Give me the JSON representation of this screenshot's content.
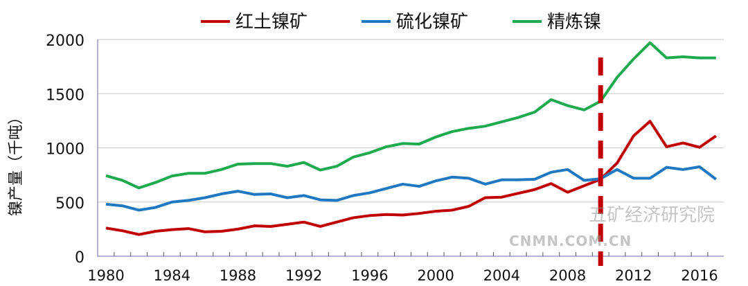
{
  "chart_data": {
    "type": "line",
    "title": "",
    "xlabel": "",
    "ylabel": "镍产量（千吨）",
    "xlim": [
      1980,
      2017
    ],
    "ylim": [
      0,
      2000
    ],
    "yticks": [
      0,
      500,
      1000,
      1500,
      2000
    ],
    "xticks": [
      1980,
      1984,
      1988,
      1992,
      1996,
      2000,
      2004,
      2008,
      2012,
      2016
    ],
    "grid": true,
    "legend": "top",
    "marker_line": {
      "x": 2010,
      "color": "#C00000",
      "style": "dashed"
    },
    "x": [
      1980,
      1981,
      1982,
      1983,
      1984,
      1985,
      1986,
      1987,
      1988,
      1989,
      1990,
      1991,
      1992,
      1993,
      1994,
      1995,
      1996,
      1997,
      1998,
      1999,
      2000,
      2001,
      2002,
      2003,
      2004,
      2005,
      2006,
      2007,
      2008,
      2009,
      2010,
      2011,
      2012,
      2013,
      2014,
      2015,
      2016,
      2017
    ],
    "series": [
      {
        "name": "红土镍矿",
        "color": "#C00000",
        "values": [
          260,
          235,
          200,
          230,
          245,
          255,
          225,
          230,
          250,
          280,
          275,
          295,
          315,
          275,
          315,
          355,
          375,
          385,
          380,
          395,
          415,
          425,
          460,
          540,
          545,
          580,
          615,
          670,
          590,
          650,
          710,
          860,
          1110,
          1245,
          1010,
          1045,
          1005,
          1110
        ]
      },
      {
        "name": "硫化镍矿",
        "color": "#1F78C1",
        "values": [
          480,
          465,
          425,
          450,
          500,
          515,
          540,
          575,
          600,
          570,
          575,
          540,
          560,
          520,
          515,
          560,
          585,
          625,
          665,
          645,
          695,
          730,
          720,
          665,
          705,
          705,
          710,
          775,
          800,
          700,
          715,
          800,
          720,
          720,
          820,
          800,
          825,
          710
        ]
      },
      {
        "name": "精炼镍",
        "color": "#1DAA4E",
        "values": [
          743,
          700,
          630,
          680,
          740,
          765,
          765,
          800,
          850,
          855,
          855,
          830,
          865,
          795,
          830,
          915,
          955,
          1010,
          1040,
          1035,
          1100,
          1150,
          1180,
          1200,
          1240,
          1280,
          1330,
          1445,
          1390,
          1350,
          1430,
          1650,
          1820,
          1970,
          1830,
          1840,
          1830,
          1830
        ]
      }
    ]
  },
  "watermark": {
    "site": "CNMN.COM.CN",
    "org": "五矿经济研究院"
  }
}
